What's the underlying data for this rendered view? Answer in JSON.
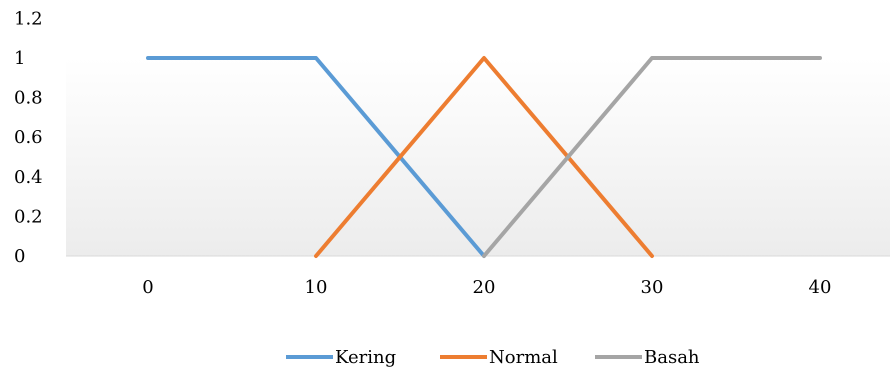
{
  "chart_data": {
    "type": "line",
    "x": [
      0,
      10,
      20,
      30,
      40
    ],
    "xticks": [
      "0",
      "10",
      "20",
      "30",
      "40"
    ],
    "yticks": [
      "0",
      "0.2",
      "0.4",
      "0.6",
      "0.8",
      "1",
      "1.2"
    ],
    "ylim": [
      0,
      1.2
    ],
    "grid": false,
    "legend": "bottom",
    "series": [
      {
        "name": "Kering",
        "color": "#5b9bd5",
        "points": [
          [
            0,
            1
          ],
          [
            10,
            1
          ],
          [
            20,
            0
          ]
        ]
      },
      {
        "name": "Normal",
        "color": "#ed7d31",
        "points": [
          [
            10,
            0
          ],
          [
            20,
            1
          ],
          [
            30,
            0
          ]
        ]
      },
      {
        "name": "Basah",
        "color": "#a5a5a5",
        "points": [
          [
            20,
            0
          ],
          [
            30,
            1
          ],
          [
            40,
            1
          ]
        ]
      }
    ]
  }
}
